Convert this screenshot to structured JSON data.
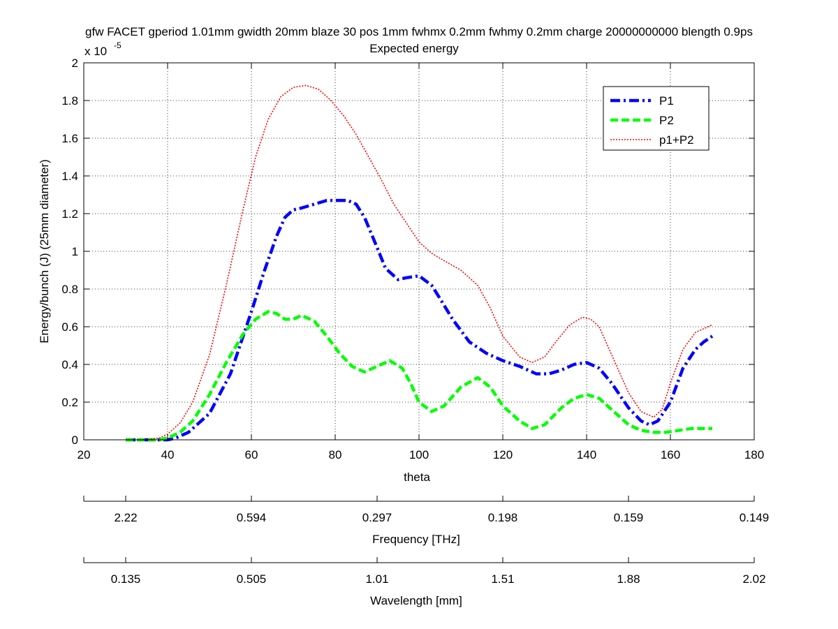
{
  "chart_data": {
    "type": "line",
    "title": "gfw FACET gperiod 1.01mm gwidth 20mm blaze 30 pos 1mm fwhmx 0.2mm fwhmy 0.2mm charge 20000000000 blength 0.9ps",
    "subtitle": "Expected energy",
    "xlabel": "theta",
    "ylabel": "Energy/bunch (J) (25mm diameter)",
    "y_multiplier_base": "x 10",
    "y_multiplier_exp": "-5",
    "xlim": [
      20,
      180
    ],
    "ylim": [
      0,
      2
    ],
    "grid": true,
    "legend_position": "top-right",
    "x_ticks": [
      20,
      40,
      60,
      80,
      100,
      120,
      140,
      160,
      180
    ],
    "y_ticks": [
      0,
      0.2,
      0.4,
      0.6,
      0.8,
      1,
      1.2,
      1.4,
      1.6,
      1.8,
      2
    ],
    "x_tick_labels": [
      "20",
      "40",
      "60",
      "80",
      "100",
      "120",
      "140",
      "160",
      "180"
    ],
    "y_tick_labels": [
      "0",
      "0.2",
      "0.4",
      "0.6",
      "0.8",
      "1",
      "1.2",
      "1.4",
      "1.6",
      "1.8",
      "2"
    ],
    "secondary_axes": [
      {
        "label": "Frequency [THz]",
        "ticks_theta": [
          20,
          30,
          60,
          90,
          120,
          150,
          180
        ],
        "tick_labels": [
          "",
          "2.22",
          "0.594",
          "0.297",
          "0.198",
          "0.159",
          "0.149"
        ]
      },
      {
        "label": "Wavelength [mm]",
        "ticks_theta": [
          20,
          30,
          60,
          90,
          120,
          150,
          180
        ],
        "tick_labels": [
          "",
          "0.135",
          "0.505",
          "1.01",
          "1.51",
          "1.88",
          "2.02"
        ]
      }
    ],
    "series": [
      {
        "name": "P1",
        "color": "#0000ff",
        "style": "dashdot",
        "x": [
          30,
          35,
          38,
          40,
          42,
          45,
          50,
          55,
          60,
          63,
          66,
          68,
          70,
          72,
          75,
          78,
          80,
          83,
          85,
          87,
          90,
          92,
          95,
          97,
          100,
          103,
          105,
          108,
          112,
          116,
          120,
          124,
          128,
          131,
          134,
          137,
          140,
          143,
          146,
          150,
          153,
          155,
          157,
          160,
          163,
          166,
          168,
          170
        ],
        "values": [
          0.0,
          0.0,
          0.0,
          0.0,
          0.01,
          0.04,
          0.14,
          0.35,
          0.68,
          0.89,
          1.08,
          1.18,
          1.22,
          1.23,
          1.25,
          1.27,
          1.27,
          1.27,
          1.25,
          1.18,
          1.02,
          0.91,
          0.85,
          0.86,
          0.87,
          0.82,
          0.75,
          0.64,
          0.52,
          0.46,
          0.42,
          0.39,
          0.35,
          0.35,
          0.37,
          0.4,
          0.41,
          0.38,
          0.3,
          0.17,
          0.1,
          0.08,
          0.1,
          0.2,
          0.38,
          0.48,
          0.52,
          0.55
        ]
      },
      {
        "name": "P2",
        "color": "#00ff00",
        "style": "dashed",
        "x": [
          30,
          35,
          38,
          40,
          43,
          46,
          50,
          54,
          58,
          61,
          64,
          66,
          68,
          70,
          72,
          75,
          78,
          81,
          84,
          87,
          90,
          93,
          96,
          98,
          100,
          103,
          106,
          110,
          114,
          117,
          120,
          124,
          127,
          130,
          134,
          137,
          140,
          143,
          146,
          150,
          153,
          156,
          159,
          162,
          165,
          168,
          170
        ],
        "values": [
          0.0,
          0.0,
          0.0,
          0.01,
          0.04,
          0.1,
          0.24,
          0.41,
          0.56,
          0.64,
          0.68,
          0.67,
          0.64,
          0.64,
          0.66,
          0.63,
          0.55,
          0.46,
          0.39,
          0.36,
          0.39,
          0.42,
          0.38,
          0.3,
          0.2,
          0.15,
          0.18,
          0.28,
          0.33,
          0.28,
          0.18,
          0.1,
          0.06,
          0.08,
          0.17,
          0.22,
          0.24,
          0.22,
          0.16,
          0.08,
          0.05,
          0.04,
          0.04,
          0.05,
          0.06,
          0.06,
          0.06
        ]
      },
      {
        "name": "p1+P2",
        "color": "#ff0000",
        "style": "dotted",
        "x": [
          30,
          35,
          38,
          40,
          43,
          46,
          50,
          54,
          58,
          61,
          64,
          67,
          70,
          73,
          76,
          79,
          82,
          85,
          88,
          91,
          94,
          97,
          100,
          103,
          106,
          110,
          114,
          117,
          120,
          124,
          127,
          130,
          133,
          136,
          139,
          141,
          143,
          146,
          150,
          153,
          156,
          158,
          160,
          163,
          166,
          168,
          170
        ],
        "values": [
          0.0,
          0.0,
          0.01,
          0.03,
          0.09,
          0.2,
          0.45,
          0.82,
          1.22,
          1.5,
          1.7,
          1.82,
          1.87,
          1.88,
          1.86,
          1.8,
          1.72,
          1.62,
          1.5,
          1.38,
          1.25,
          1.15,
          1.05,
          0.99,
          0.95,
          0.9,
          0.82,
          0.7,
          0.55,
          0.44,
          0.41,
          0.44,
          0.53,
          0.61,
          0.65,
          0.64,
          0.6,
          0.45,
          0.25,
          0.15,
          0.12,
          0.16,
          0.3,
          0.48,
          0.57,
          0.59,
          0.61
        ]
      }
    ]
  }
}
